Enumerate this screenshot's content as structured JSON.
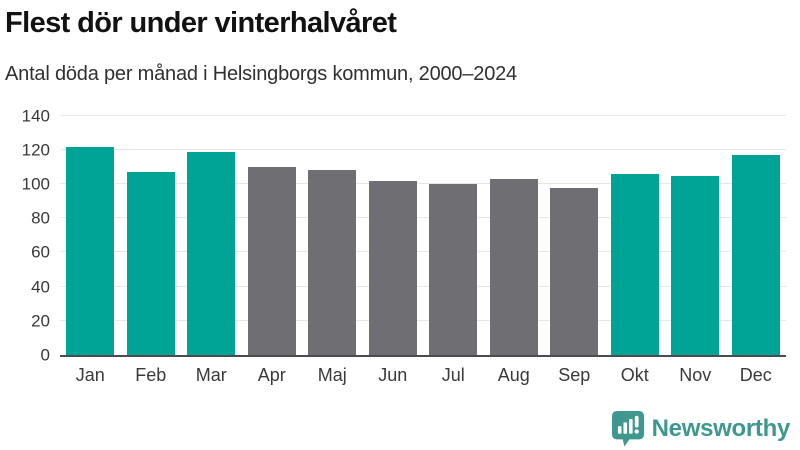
{
  "header": {
    "title": "Flest dör under vinterhalvåret",
    "subtitle": "Antal döda per månad i Helsingborgs kommun, 2000–2024"
  },
  "chart_data": {
    "type": "bar",
    "title": "Flest dör under vinterhalvåret",
    "subtitle": "Antal döda per månad i Helsingborgs kommun, 2000–2024",
    "categories": [
      "Jan",
      "Feb",
      "Mar",
      "Apr",
      "Maj",
      "Jun",
      "Jul",
      "Aug",
      "Sep",
      "Okt",
      "Nov",
      "Dec"
    ],
    "values": [
      122,
      107,
      119,
      110,
      108,
      102,
      100,
      103,
      98,
      106,
      105,
      117
    ],
    "bar_color_keys": [
      "highlight",
      "highlight",
      "highlight",
      "base",
      "base",
      "base",
      "base",
      "base",
      "base",
      "highlight",
      "highlight",
      "highlight"
    ],
    "xlabel": "",
    "ylabel": "",
    "ylim": [
      0,
      140
    ],
    "yticks": [
      0,
      20,
      40,
      60,
      80,
      100,
      120,
      140
    ],
    "grid": true,
    "legend": false
  },
  "style": {
    "highlight_color": "#00a496",
    "base_color": "#6e6e73",
    "gridline_color": "#e7e7e7",
    "axis_line_color": "#4b4b4e",
    "text_color": "#3a3a3a",
    "title_color": "#121212",
    "brand_color": "#3f988e"
  },
  "footer": {
    "brand": "Newsworthy",
    "logo_icon": "newsworthy-speech-bubble-bar-chart-icon"
  }
}
